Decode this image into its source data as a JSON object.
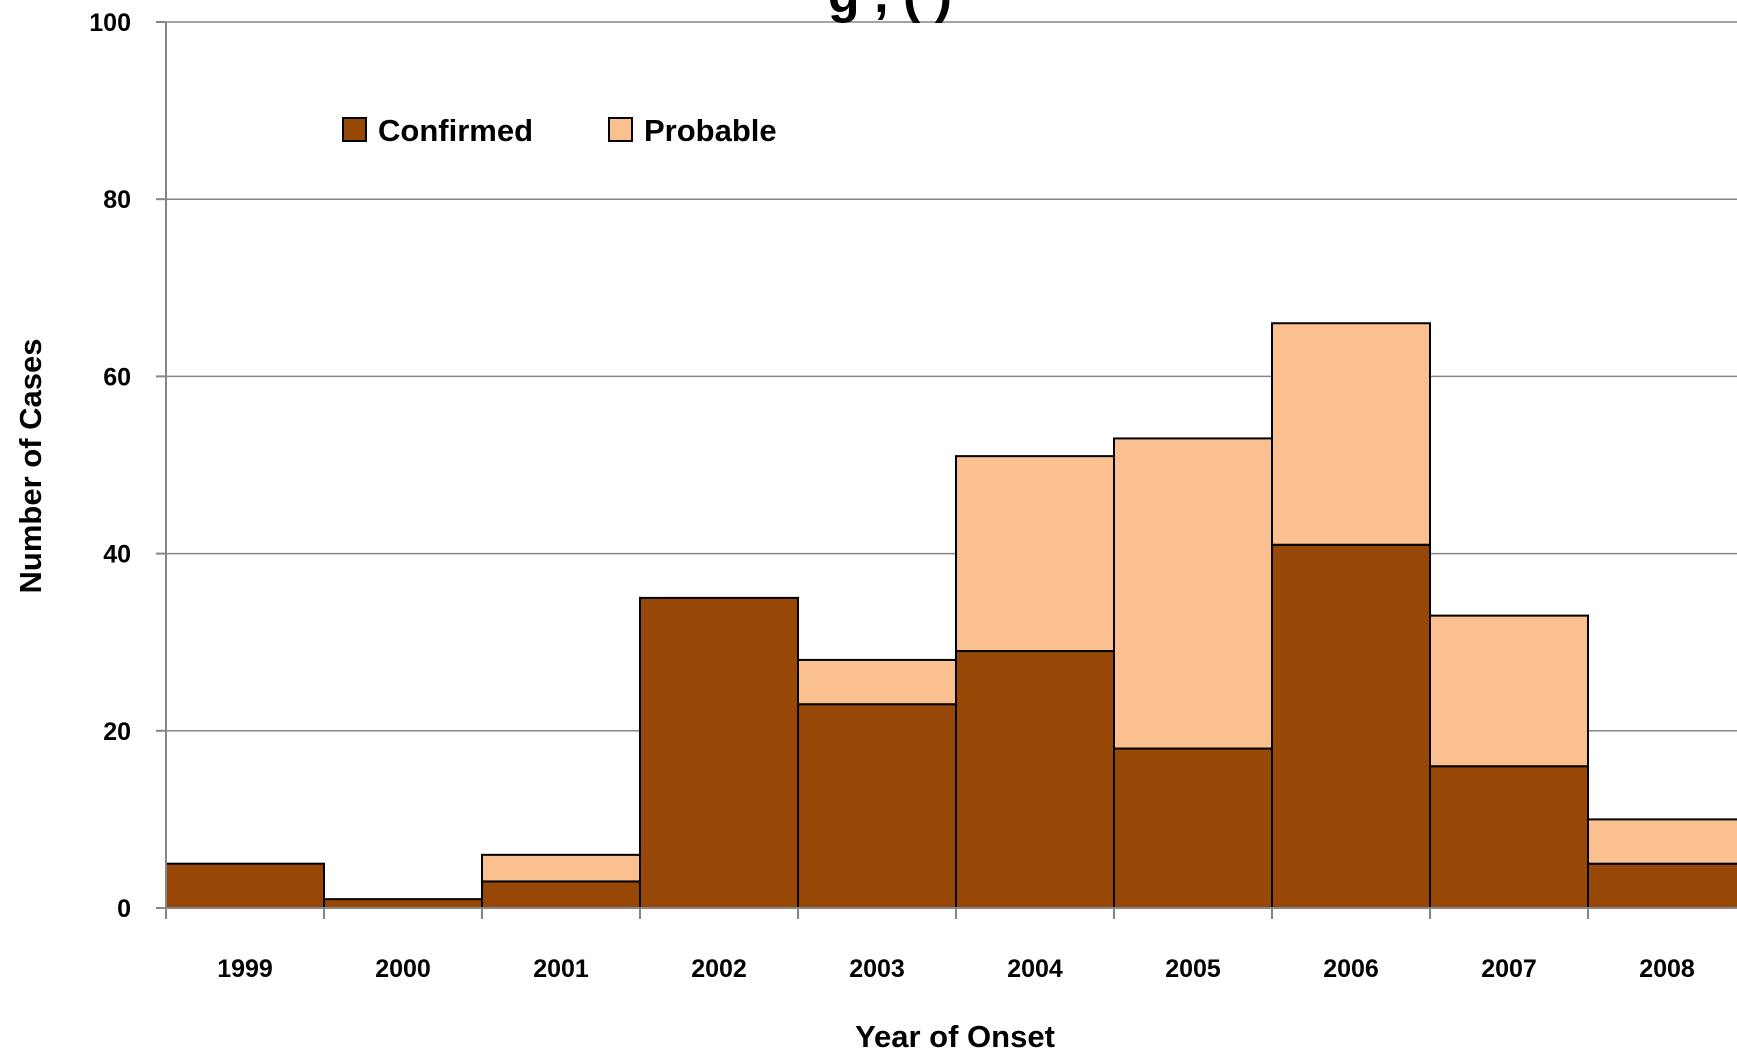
{
  "chart_data": {
    "type": "bar",
    "stacked": true,
    "title_fragment": "g , (  )",
    "xlabel": "Year of Onset",
    "ylabel": "Number of Cases",
    "categories": [
      "1999",
      "2000",
      "2001",
      "2002",
      "2003",
      "2004",
      "2005",
      "2006",
      "2007",
      "2008"
    ],
    "series": [
      {
        "name": "Confirmed",
        "color": "#974706",
        "values": [
          5,
          1,
          3,
          35,
          23,
          29,
          18,
          41,
          16,
          5
        ]
      },
      {
        "name": "Probable",
        "color": "#FAC090",
        "values": [
          0,
          0,
          3,
          0,
          5,
          22,
          35,
          25,
          17,
          5
        ]
      }
    ],
    "ylim": [
      0,
      100
    ],
    "yticks": [
      0,
      20,
      40,
      60,
      80,
      100
    ],
    "ytick_labels": [
      "0",
      "20",
      "40",
      "60",
      "80",
      "100"
    ],
    "grid": true,
    "legend_position": "top-left"
  }
}
